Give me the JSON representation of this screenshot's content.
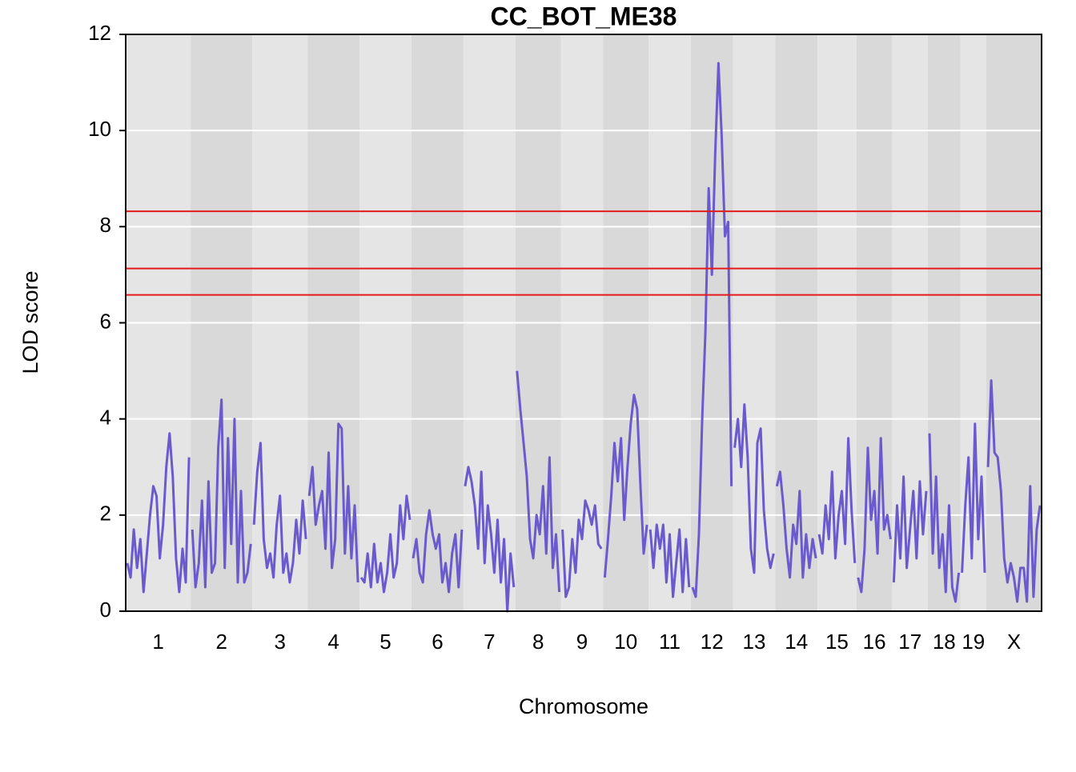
{
  "chart_data": {
    "type": "line",
    "title": "CC_BOT_ME38",
    "xlabel": "Chromosome",
    "ylabel": "LOD score",
    "ylim": [
      0,
      12
    ],
    "yticks": [
      0,
      2,
      4,
      6,
      8,
      10,
      12
    ],
    "grid": true,
    "color": "#6a5acd",
    "band_colors": [
      "#e5e5e5",
      "#d9d9d9"
    ],
    "thresholds": [
      8.32,
      7.13,
      6.58
    ],
    "threshold_color": "#e41a1c",
    "chromosomes": [
      {
        "name": "1",
        "values": [
          1.0,
          0.7,
          1.7,
          0.9,
          1.5,
          0.4,
          1.2,
          2.0,
          2.6,
          2.4,
          1.1,
          1.8,
          3.0,
          3.7,
          2.8,
          1.1,
          0.4,
          1.3,
          0.6,
          3.2
        ]
      },
      {
        "name": "2",
        "values": [
          1.7,
          0.5,
          1.0,
          2.3,
          0.5,
          2.7,
          0.8,
          1.0,
          3.4,
          4.4,
          0.9,
          3.6,
          1.4,
          4.0,
          0.6,
          2.5,
          0.6,
          0.8,
          1.4
        ]
      },
      {
        "name": "3",
        "values": [
          1.8,
          2.9,
          3.5,
          1.5,
          0.9,
          1.2,
          0.7,
          1.8,
          2.4,
          0.8,
          1.2,
          0.6,
          1.0,
          1.9,
          1.2,
          2.3,
          1.5
        ]
      },
      {
        "name": "4",
        "values": [
          2.4,
          3.0,
          1.8,
          2.2,
          2.5,
          1.3,
          3.3,
          0.9,
          1.5,
          3.9,
          3.8,
          1.2,
          2.6,
          1.1,
          2.2,
          0.6
        ]
      },
      {
        "name": "5",
        "values": [
          0.7,
          0.6,
          1.2,
          0.5,
          1.4,
          0.6,
          1.0,
          0.4,
          0.8,
          1.6,
          0.7,
          1.0,
          2.2,
          1.5,
          2.4,
          1.9
        ]
      },
      {
        "name": "6",
        "values": [
          1.1,
          1.5,
          0.8,
          0.6,
          1.6,
          2.1,
          1.6,
          1.3,
          1.6,
          0.6,
          1.0,
          0.4,
          1.2,
          1.6,
          0.5,
          1.7
        ]
      },
      {
        "name": "7",
        "values": [
          2.6,
          3.0,
          2.7,
          2.2,
          1.3,
          2.9,
          1.0,
          2.2,
          1.6,
          0.8,
          1.9,
          0.6,
          1.5,
          0.0,
          1.2,
          0.5
        ]
      },
      {
        "name": "8",
        "values": [
          5.0,
          4.2,
          3.5,
          2.8,
          1.5,
          1.1,
          2.0,
          1.6,
          2.6,
          1.2,
          3.2,
          0.9,
          1.6,
          0.4
        ]
      },
      {
        "name": "9",
        "values": [
          1.7,
          0.3,
          0.5,
          1.5,
          0.8,
          1.9,
          1.5,
          2.3,
          2.1,
          1.8,
          2.2,
          1.4,
          1.3
        ]
      },
      {
        "name": "10",
        "values": [
          0.7,
          1.5,
          2.4,
          3.5,
          2.7,
          3.6,
          1.9,
          3.0,
          3.9,
          4.5,
          4.2,
          2.6,
          1.2,
          1.8
        ]
      },
      {
        "name": "11",
        "values": [
          1.7,
          0.9,
          1.8,
          1.3,
          1.8,
          0.6,
          1.6,
          0.3,
          1.0,
          1.7,
          0.4,
          1.5,
          0.5
        ]
      },
      {
        "name": "12",
        "values": [
          0.5,
          0.3,
          1.6,
          4.0,
          5.8,
          8.8,
          7.0,
          9.5,
          11.4,
          9.9,
          7.8,
          8.1,
          2.6
        ]
      },
      {
        "name": "13",
        "values": [
          3.4,
          4.0,
          3.0,
          4.3,
          3.2,
          1.3,
          0.8,
          3.5,
          3.8,
          2.1,
          1.3,
          0.9,
          1.2
        ]
      },
      {
        "name": "14",
        "values": [
          2.6,
          2.9,
          2.2,
          1.3,
          0.7,
          1.8,
          1.4,
          2.5,
          0.7,
          1.6,
          0.9,
          1.5,
          1.1
        ]
      },
      {
        "name": "15",
        "values": [
          1.6,
          1.2,
          2.2,
          1.5,
          2.9,
          1.1,
          2.0,
          2.5,
          1.4,
          3.6,
          2.1,
          1.0
        ]
      },
      {
        "name": "16",
        "values": [
          0.7,
          0.4,
          1.3,
          3.4,
          1.9,
          2.5,
          1.2,
          3.6,
          1.7,
          2.0,
          1.5
        ]
      },
      {
        "name": "17",
        "values": [
          0.6,
          2.2,
          1.1,
          2.8,
          0.9,
          1.7,
          2.5,
          1.1,
          2.7,
          1.6,
          2.5
        ]
      },
      {
        "name": "18",
        "values": [
          3.7,
          1.2,
          2.8,
          0.9,
          1.6,
          0.4,
          2.2,
          0.5,
          0.2,
          0.8
        ]
      },
      {
        "name": "19",
        "values": [
          0.8,
          2.2,
          3.2,
          1.1,
          3.9,
          1.5,
          2.8,
          0.8
        ]
      },
      {
        "name": "X",
        "values": [
          3.0,
          4.8,
          3.3,
          3.2,
          2.5,
          1.1,
          0.6,
          1.0,
          0.7,
          0.2,
          0.9,
          0.9,
          0.2,
          2.6,
          0.3,
          1.7,
          2.2
        ]
      }
    ]
  }
}
